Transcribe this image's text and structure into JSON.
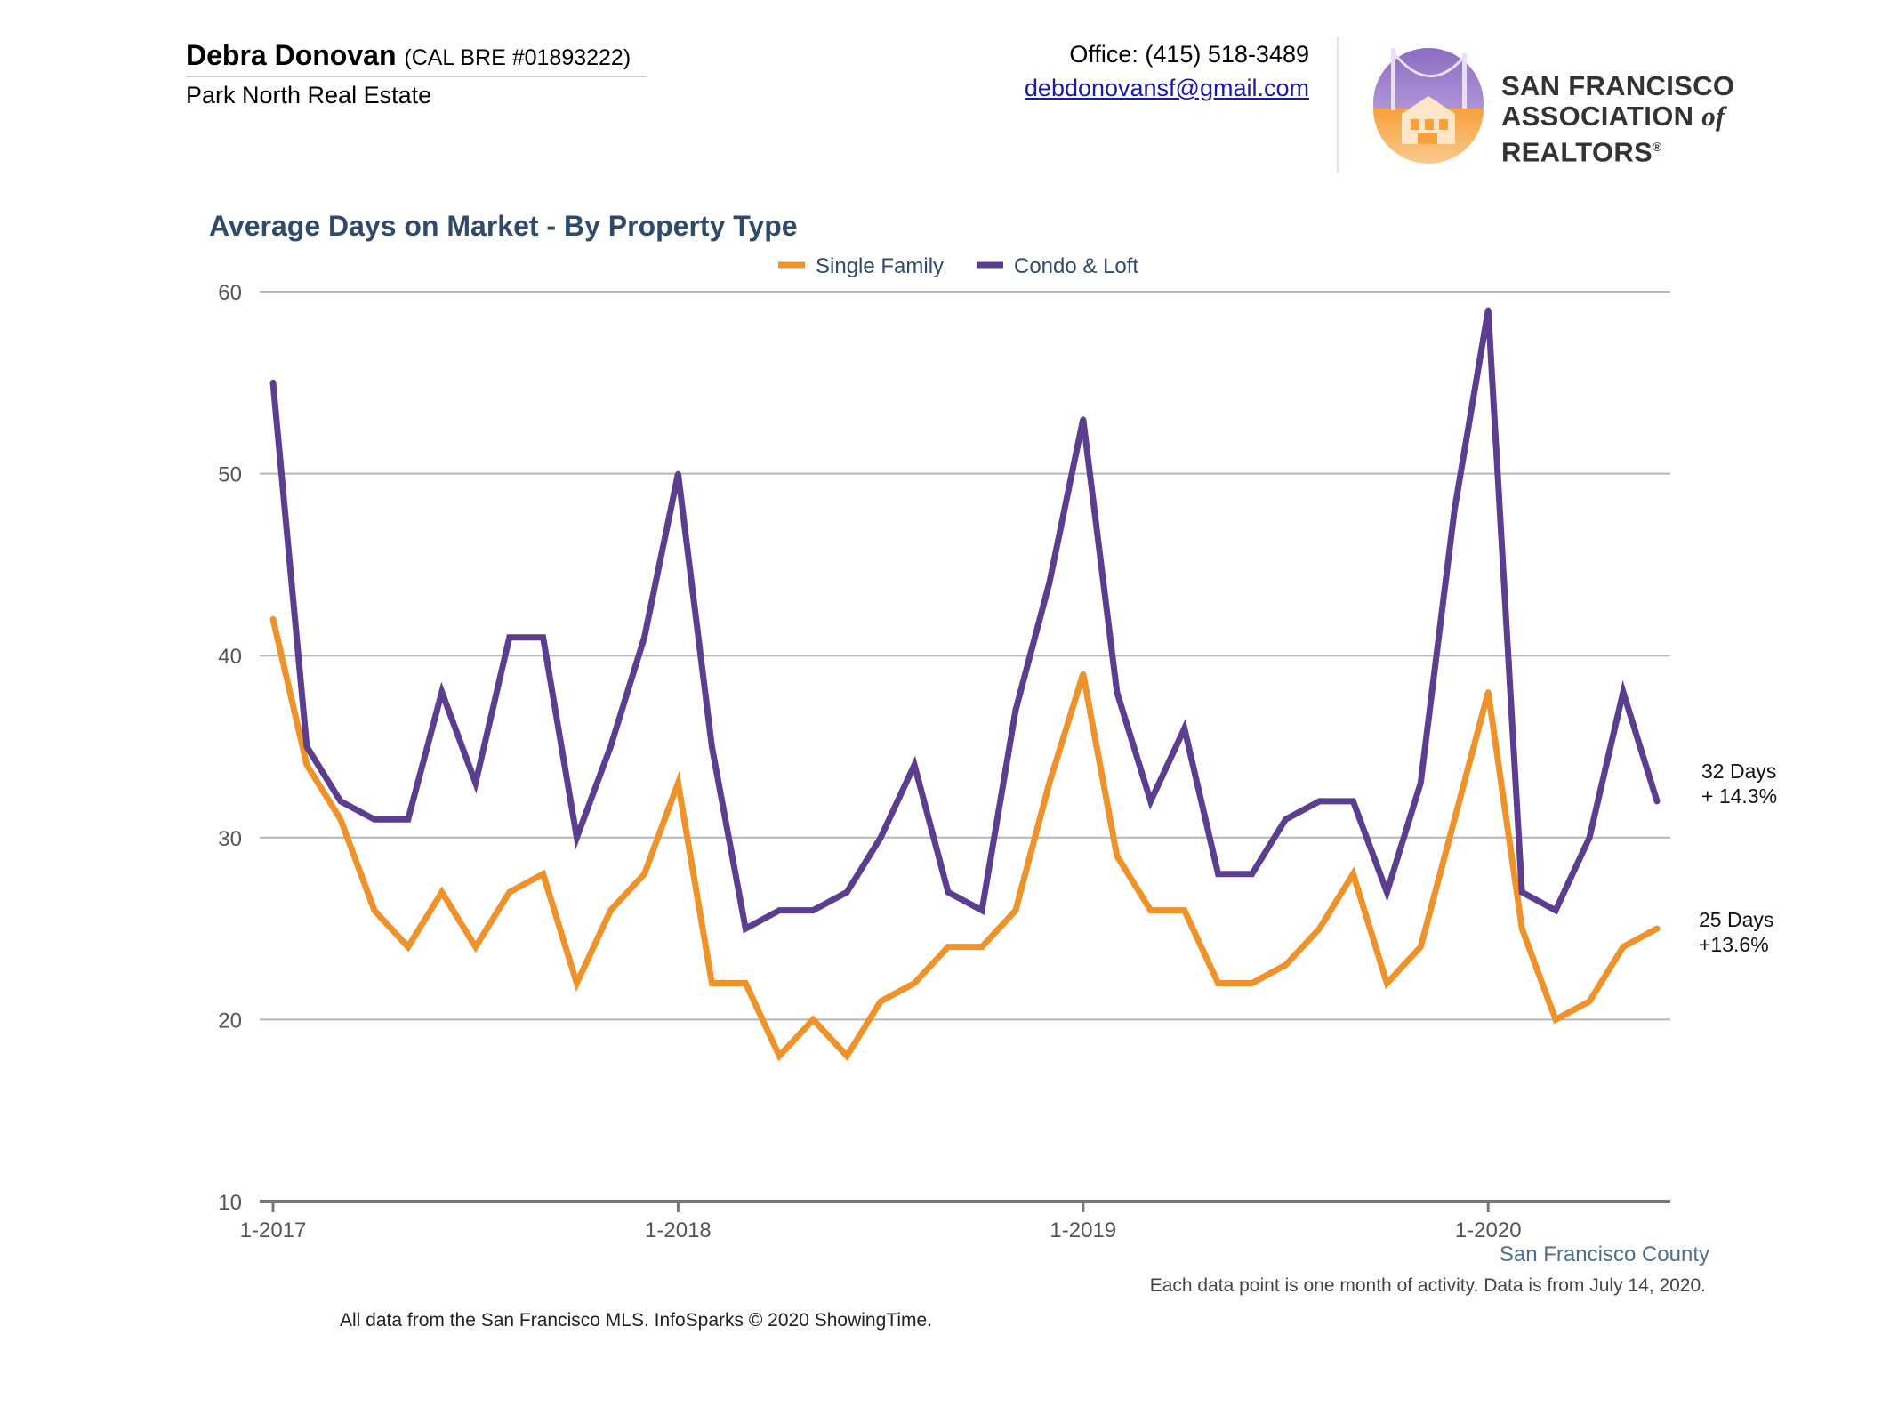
{
  "header": {
    "agent_name": "Debra Donovan",
    "license": "(CAL BRE #01893222)",
    "company": "Park North Real Estate",
    "office": "Office: (415) 518-3489",
    "email": "debdonovansf@gmail.com",
    "logo_line1": "San Francisco",
    "logo_line2_a": "Association",
    "logo_line2_of": "of",
    "logo_line2_b": "Realtors",
    "logo_reg": "®"
  },
  "colors": {
    "single_family": "#f0922a",
    "condo_loft": "#5b3e8f",
    "title": "#2f4a6b",
    "grid": "#b5b5b5",
    "axis": "#777777"
  },
  "chart_data": {
    "type": "line",
    "title": "Average Days on Market - By Property Type",
    "x_start": "1-2017",
    "x_labels": [
      "1-2017",
      "1-2018",
      "1-2019",
      "1-2020"
    ],
    "ylim": [
      10,
      60
    ],
    "yticks": [
      10,
      20,
      30,
      40,
      50,
      60
    ],
    "grid": true,
    "legend_position": "top-center",
    "series": [
      {
        "name": "Single Family",
        "color": "#f0922a",
        "values": [
          42,
          34,
          31,
          26,
          24,
          27,
          24,
          27,
          28,
          22,
          26,
          28,
          33,
          22,
          22,
          18,
          20,
          18,
          21,
          22,
          24,
          24,
          26,
          33,
          39,
          29,
          26,
          26,
          22,
          22,
          23,
          25,
          28,
          22,
          24,
          31,
          38,
          25,
          20,
          21,
          24,
          25
        ],
        "end_label_1": "25 Days",
        "end_label_2": "+13.6%"
      },
      {
        "name": "Condo & Loft",
        "color": "#5b3e8f",
        "values": [
          55,
          35,
          32,
          31,
          31,
          38,
          33,
          41,
          41,
          30,
          35,
          41,
          50,
          35,
          25,
          26,
          26,
          27,
          30,
          34,
          27,
          26,
          37,
          44,
          53,
          38,
          32,
          36,
          28,
          28,
          31,
          32,
          32,
          27,
          33,
          48,
          59,
          27,
          26,
          30,
          38,
          32
        ],
        "end_label_1": "32 Days",
        "end_label_2": "+ 14.3%"
      }
    ]
  },
  "footer": {
    "region": "San Francisco County",
    "note": "Each data point is one month of activity. Data is from July 14, 2020.",
    "source": "All data from the San Francisco MLS. InfoSparks © 2020 ShowingTime."
  }
}
